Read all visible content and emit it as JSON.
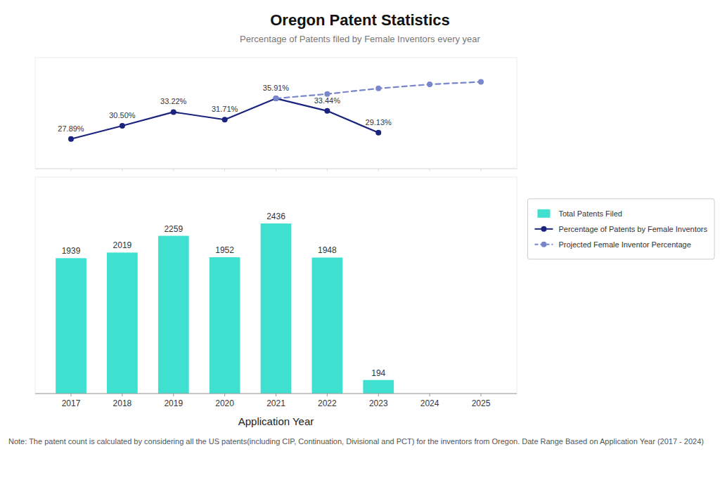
{
  "chart_data": [
    {
      "type": "line",
      "title": "Oregon Patent Statistics",
      "subtitle": "Percentage of Patents filed by Female Inventors every year",
      "annotations": [
        "Note: The patent count is calculated by considering all the US patents(including CIP, Continuation, Divisional and PCT) for the inventors from Oregon. Date Range Based on Application Year (2017 - 2024)"
      ],
      "x": [
        2017,
        2018,
        2019,
        2020,
        2021,
        2022,
        2023,
        2024,
        2025
      ],
      "xlim": [
        2016.3,
        2025.7
      ],
      "xticks": [
        2017,
        2018,
        2019,
        2020,
        2021,
        2022,
        2023,
        2024,
        2025
      ],
      "ylim": [
        22,
        44
      ],
      "tick_labels": false,
      "series": [
        {
          "name": "Percentage of Patents by Female Inventors",
          "color": "#1a237e",
          "marker": "circle",
          "line_style": "solid",
          "values": [
            27.89,
            30.5,
            33.22,
            31.71,
            35.91,
            33.44,
            29.13,
            null,
            null
          ],
          "data_labels": true,
          "value_labels": [
            "27.89%",
            "30.50%",
            "33.22%",
            "31.71%",
            "35.91%",
            "33.44%",
            "29.13%",
            null,
            null
          ]
        },
        {
          "name": "Projected Female Inventor Percentage",
          "color": "#7986CB",
          "marker": "circle",
          "line_style": "dashed",
          "values": [
            null,
            null,
            null,
            null,
            35.91,
            36.8,
            37.9,
            38.7,
            39.2
          ]
        }
      ]
    },
    {
      "type": "bar",
      "xlabel": "Application Year",
      "x": [
        2017,
        2018,
        2019,
        2020,
        2021,
        2022,
        2023
      ],
      "xlim": [
        2016.3,
        2025.7
      ],
      "xticks": [
        2017,
        2018,
        2019,
        2020,
        2021,
        2022,
        2023,
        2024,
        2025
      ],
      "ylim": [
        0,
        3100
      ],
      "tick_labels": "x",
      "legend": "right",
      "data_labels": true,
      "series": [
        {
          "name": "Total Patents Filed",
          "color": "#40E0D0",
          "values": [
            1939,
            2019,
            2259,
            1952,
            2436,
            1948,
            194
          ]
        }
      ]
    }
  ]
}
